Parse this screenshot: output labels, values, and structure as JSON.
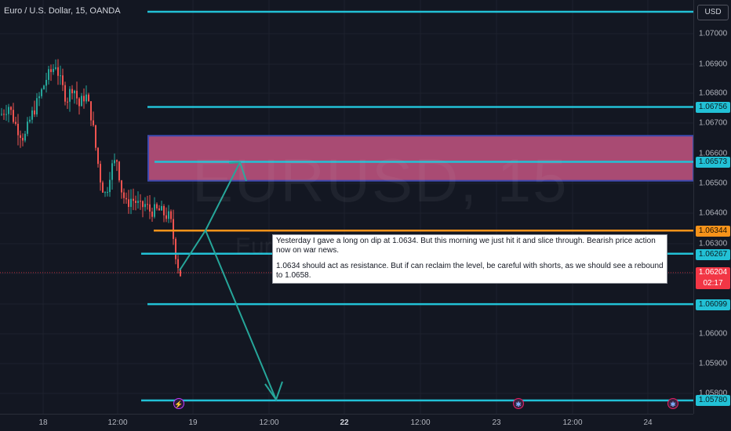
{
  "header": {
    "symbol_title": "Euro / U.S. Dollar, 15, OANDA"
  },
  "price_axis": {
    "currency_label": "USD",
    "ticks": [
      "1.07000",
      "1.06900",
      "1.06800",
      "1.06700",
      "1.06600",
      "1.06500",
      "1.06400",
      "1.06300",
      "1.06000",
      "1.05900",
      "1.05800"
    ],
    "tick_values": [
      1.07,
      1.069,
      1.068,
      1.067,
      1.066,
      1.065,
      1.064,
      1.063,
      1.06,
      1.059,
      1.058
    ],
    "level_labels": [
      {
        "text": "1.06756",
        "value": 1.06756,
        "color": "cyan"
      },
      {
        "text": "1.06573",
        "value": 1.06573,
        "color": "cyan"
      },
      {
        "text": "1.06344",
        "value": 1.06344,
        "color": "orange"
      },
      {
        "text": "1.06267",
        "value": 1.06267,
        "color": "cyan"
      },
      {
        "text": "1.06099",
        "value": 1.06099,
        "color": "cyan"
      },
      {
        "text": "1.05780",
        "value": 1.0578,
        "color": "cyan"
      }
    ],
    "last_price": {
      "price": "1.06204",
      "countdown": "02:17",
      "value": 1.06204
    }
  },
  "time_axis": {
    "ticks": [
      {
        "label": "18",
        "bold": false
      },
      {
        "label": "12:00",
        "bold": false
      },
      {
        "label": "19",
        "bold": false
      },
      {
        "label": "12:00",
        "bold": false
      },
      {
        "label": "22",
        "bold": true
      },
      {
        "label": "12:00",
        "bold": false
      },
      {
        "label": "23",
        "bold": false
      },
      {
        "label": "12:00",
        "bold": false
      },
      {
        "label": "24",
        "bold": false
      }
    ]
  },
  "watermark": {
    "main": "EURUSD, 15",
    "sub": "Euro / U.S. Dollar"
  },
  "annotation": {
    "paragraph1": "Yesterday I gave a long on dip at 1.0634. But this morning we just hit it and slice through. Bearish price action now on war news.",
    "paragraph2": "1.0634 should act as resistance. But if can reclaim the level, be careful with shorts, as we should see a rebound to 1.0658."
  },
  "drawings": {
    "horizontal_levels": [
      1.0713,
      1.06756,
      1.06573,
      1.06344,
      1.06267,
      1.06099,
      1.0578
    ],
    "resistance_zone": {
      "top": 1.0666,
      "bottom": 1.0651
    },
    "colors": {
      "level": "#22c1d6",
      "orange_level": "#f7931a",
      "zone_fill": "#a94b73",
      "zone_border": "#3d4ab0",
      "arrow": "#26a69a",
      "up_candle": "#26a69a",
      "down_candle": "#ef5350",
      "last_price": "#f23645"
    }
  },
  "events": [
    {
      "icon": "lightning-icon",
      "glyph": "⚡"
    },
    {
      "icon": "economic-event-icon",
      "glyph": "✱"
    },
    {
      "icon": "economic-event-icon",
      "glyph": "✱"
    }
  ]
}
